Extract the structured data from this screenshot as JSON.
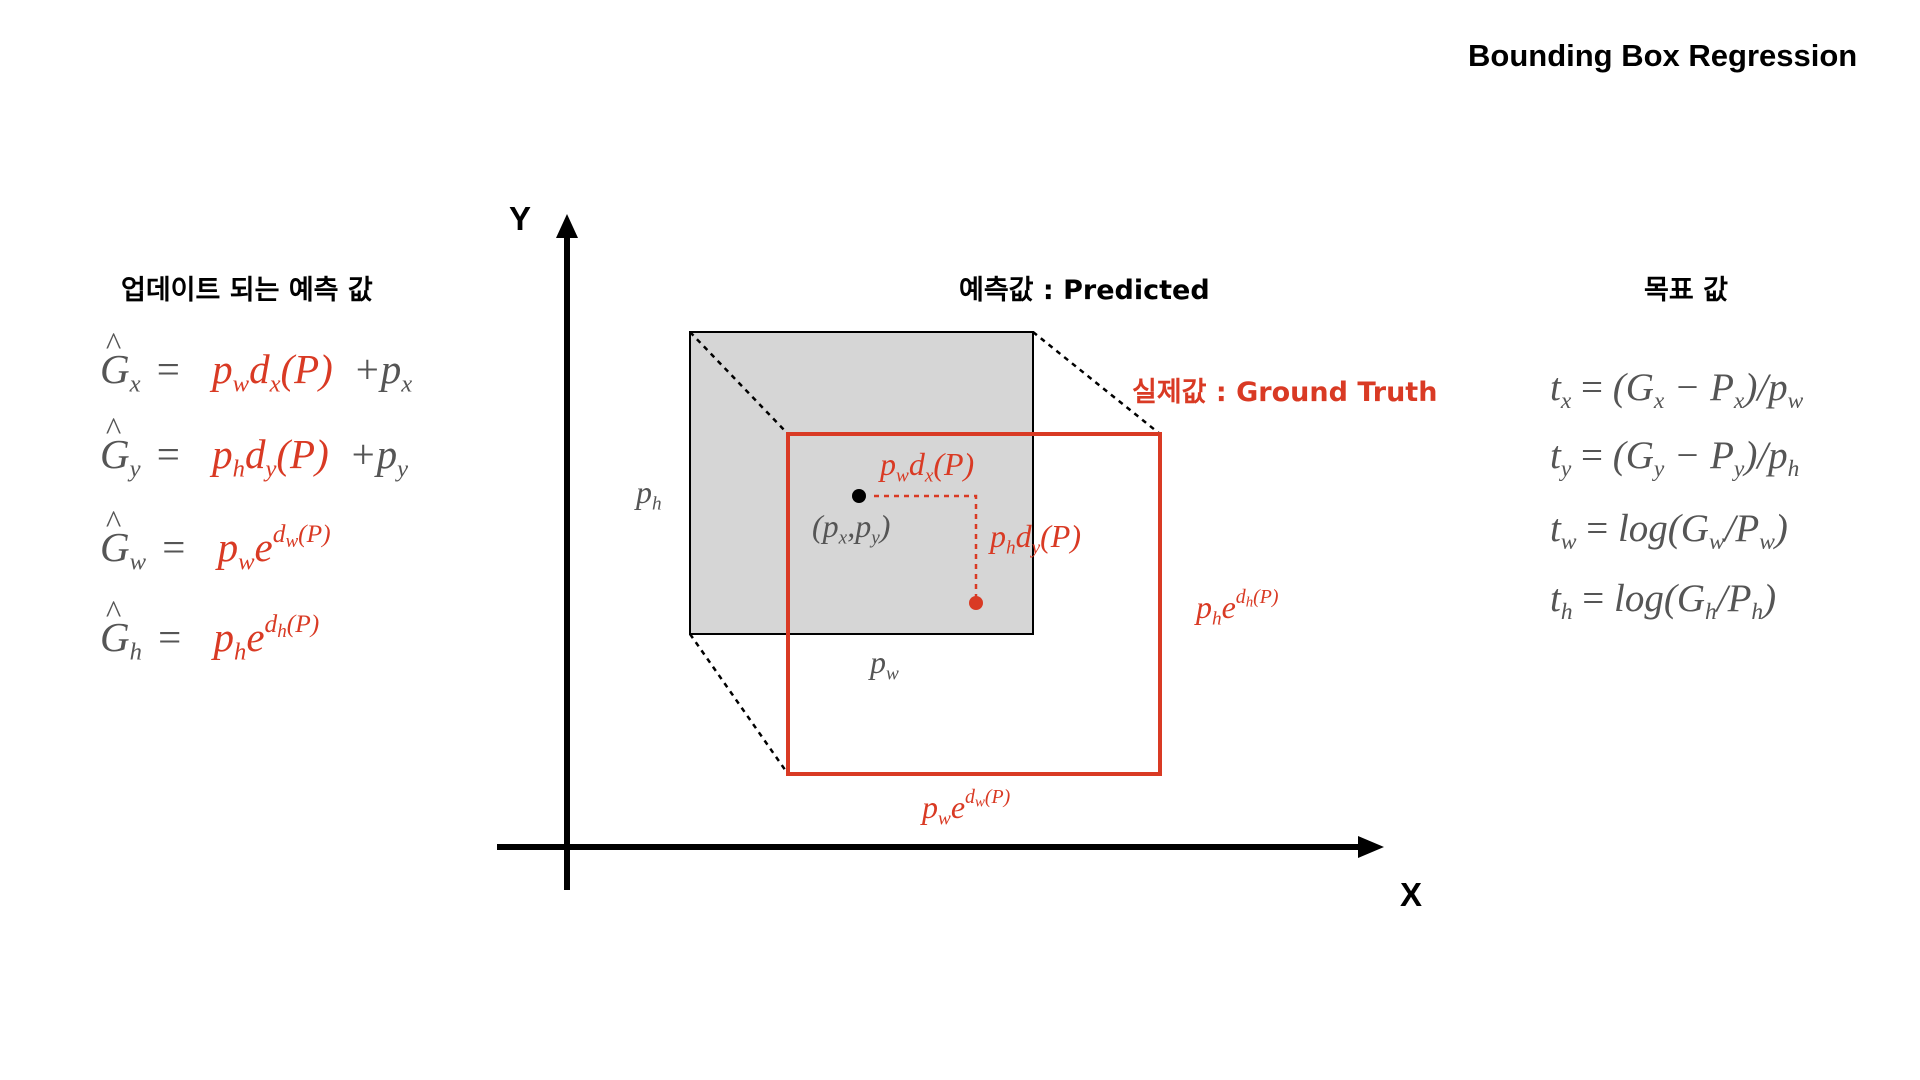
{
  "title": "Bounding Box Regression",
  "left_heading": "업데이트 되는 예측 값",
  "center_heading": "예측값 : Predicted",
  "right_heading": "목표 값",
  "ground_truth_label": "실제값 : Ground Truth",
  "axis": {
    "x_label": "X",
    "y_label": "Y"
  },
  "colors": {
    "accent": "#d93a24",
    "gray_text": "#555555",
    "box_fill": "#d6d6d6"
  },
  "update_equations": [
    {
      "lhs": "G",
      "lhs_sub": "x",
      "eq": "=",
      "term": "p",
      "term_sub": "w",
      "term2": "d",
      "term2_sub": "x",
      "arg": "(P)",
      "plus": "+p",
      "plus_sub": "x"
    },
    {
      "lhs": "G",
      "lhs_sub": "y",
      "eq": "=",
      "term": "p",
      "term_sub": "h",
      "term2": "d",
      "term2_sub": "y",
      "arg": "(P)",
      "plus": "+p",
      "plus_sub": "y"
    },
    {
      "lhs": "G",
      "lhs_sub": "w",
      "eq": "=",
      "term": "p",
      "term_sub": "w",
      "exp_base": "e",
      "exp": "d",
      "exp_sub": "w",
      "exp_arg": "(P)"
    },
    {
      "lhs": "G",
      "lhs_sub": "h",
      "eq": "=",
      "term": "p",
      "term_sub": "h",
      "exp_base": "e",
      "exp": "d",
      "exp_sub": "h",
      "exp_arg": "(P)"
    }
  ],
  "target_equations": [
    {
      "lhs": "t",
      "lhs_sub": "x",
      "eq": " = ",
      "open": "(G",
      "s1": "x",
      "minus": " − P",
      "s2": "x",
      "close": ")/p",
      "s3": "w"
    },
    {
      "lhs": "t",
      "lhs_sub": "y",
      "eq": " = ",
      "open": "(G",
      "s1": "y",
      "minus": " − P",
      "s2": "y",
      "close": ")/p",
      "s3": "h"
    },
    {
      "lhs": "t",
      "lhs_sub": "w",
      "eq": " = ",
      "open": "log(G",
      "s1": "w",
      "minus": "/P",
      "s2": "w",
      "close": ")"
    },
    {
      "lhs": "t",
      "lhs_sub": "h",
      "eq": " = ",
      "open": "log(G",
      "s1": "h",
      "minus": "/P",
      "s2": "h",
      "close": ")"
    }
  ],
  "diagram_labels": {
    "p_h": {
      "base": "p",
      "sub": "h"
    },
    "p_w": {
      "base": "p",
      "sub": "w"
    },
    "center": {
      "open": "(p",
      "s1": "x",
      "comma": ",p",
      "s2": "y",
      "close": ")"
    },
    "dx": {
      "a": "p",
      "a_sub": "w",
      "b": "d",
      "b_sub": "x",
      "arg": "(P)"
    },
    "dy": {
      "a": "p",
      "a_sub": "h",
      "b": "d",
      "b_sub": "y",
      "arg": "(P)"
    },
    "gt_h": {
      "base": "p",
      "sub": "h",
      "e": "e",
      "exp": "d",
      "exp_sub": "h",
      "exp_arg": "(P)"
    },
    "gt_w": {
      "base": "p",
      "sub": "w",
      "e": "e",
      "exp": "d",
      "exp_sub": "w",
      "exp_arg": "(P)"
    }
  }
}
